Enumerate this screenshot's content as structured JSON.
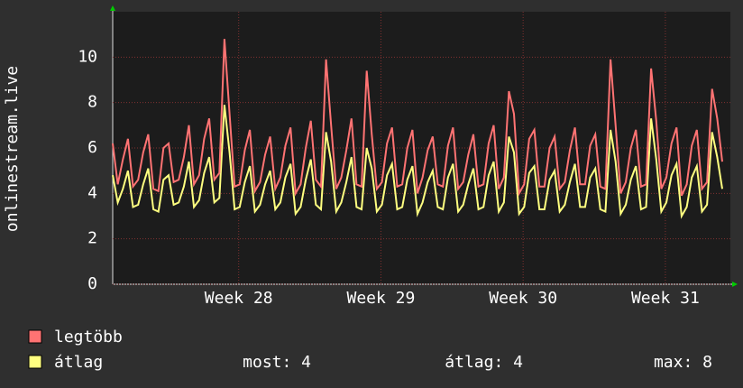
{
  "chart_data": {
    "type": "line",
    "y_label": "onlinestream.live",
    "xlim": [
      0,
      30.4
    ],
    "xticks": [
      {
        "value": 6.2,
        "label": "Week 28"
      },
      {
        "value": 13.2,
        "label": "Week 29"
      },
      {
        "value": 20.2,
        "label": "Week 30"
      },
      {
        "value": 27.2,
        "label": "Week 31"
      }
    ],
    "ylim": [
      0,
      12
    ],
    "yticks": [
      0,
      2,
      4,
      6,
      8,
      10
    ],
    "grid": true,
    "x": [
      0,
      0.25,
      0.5,
      0.75,
      1,
      1.25,
      1.5,
      1.75,
      2,
      2.25,
      2.5,
      2.75,
      3,
      3.25,
      3.5,
      3.75,
      4,
      4.25,
      4.5,
      4.75,
      5,
      5.25,
      5.5,
      5.75,
      6,
      6.25,
      6.5,
      6.75,
      7,
      7.25,
      7.5,
      7.75,
      8,
      8.25,
      8.5,
      8.75,
      9,
      9.25,
      9.5,
      9.75,
      10,
      10.25,
      10.5,
      10.75,
      11,
      11.25,
      11.5,
      11.75,
      12,
      12.25,
      12.5,
      12.75,
      13,
      13.25,
      13.5,
      13.75,
      14,
      14.25,
      14.5,
      14.75,
      15,
      15.25,
      15.5,
      15.75,
      16,
      16.25,
      16.5,
      16.75,
      17,
      17.25,
      17.5,
      17.75,
      18,
      18.25,
      18.5,
      18.75,
      19,
      19.25,
      19.5,
      19.75,
      20,
      20.25,
      20.5,
      20.75,
      21,
      21.25,
      21.5,
      21.75,
      22,
      22.25,
      22.5,
      22.75,
      23,
      23.25,
      23.5,
      23.75,
      24,
      24.25,
      24.5,
      24.75,
      25,
      25.25,
      25.5,
      25.75,
      26,
      26.25,
      26.5,
      26.75,
      27,
      27.25,
      27.5,
      27.75,
      28,
      28.25,
      28.5,
      28.75,
      29,
      29.25,
      29.5,
      29.75,
      30
    ],
    "series": [
      {
        "name": "legtöbb",
        "color": "#ff7373",
        "values": [
          6.2,
          4.4,
          5.5,
          6.4,
          4.3,
          4.6,
          5.8,
          6.6,
          4.2,
          4.1,
          6.0,
          6.2,
          4.5,
          4.6,
          5.6,
          7.0,
          4.4,
          4.8,
          6.4,
          7.3,
          4.6,
          4.9,
          10.8,
          7.5,
          4.3,
          4.4,
          5.9,
          6.8,
          4.1,
          4.5,
          5.7,
          6.5,
          4.2,
          4.7,
          6.1,
          6.9,
          4.0,
          4.4,
          6.0,
          7.2,
          4.6,
          4.3,
          9.9,
          7.0,
          4.2,
          4.7,
          5.9,
          7.3,
          4.4,
          4.3,
          9.4,
          6.6,
          4.2,
          4.5,
          6.2,
          6.9,
          4.3,
          4.4,
          6.0,
          6.8,
          4.0,
          4.7,
          5.9,
          6.5,
          4.4,
          4.3,
          6.1,
          6.9,
          4.2,
          4.5,
          5.7,
          6.6,
          4.3,
          4.4,
          6.2,
          7.0,
          4.2,
          4.7,
          8.5,
          7.5,
          4.0,
          4.4,
          6.4,
          6.8,
          4.3,
          4.3,
          6.0,
          6.5,
          4.2,
          4.5,
          5.9,
          6.9,
          4.4,
          4.4,
          6.1,
          6.6,
          4.3,
          4.2,
          9.9,
          7.0,
          4.0,
          4.5,
          6.0,
          6.8,
          4.3,
          4.4,
          9.5,
          7.2,
          4.2,
          4.7,
          6.2,
          6.9,
          3.9,
          4.4,
          6.1,
          6.8,
          4.2,
          4.5,
          8.6,
          7.3,
          5.4
        ]
      },
      {
        "name": "átlag",
        "color": "#ffff80",
        "values": [
          4.8,
          3.6,
          4.2,
          5.0,
          3.4,
          3.5,
          4.4,
          5.1,
          3.3,
          3.2,
          4.6,
          4.8,
          3.5,
          3.6,
          4.3,
          5.4,
          3.4,
          3.7,
          4.9,
          5.6,
          3.6,
          3.8,
          7.9,
          5.8,
          3.3,
          3.4,
          4.5,
          5.2,
          3.2,
          3.5,
          4.4,
          5.0,
          3.3,
          3.6,
          4.7,
          5.3,
          3.1,
          3.4,
          4.6,
          5.5,
          3.5,
          3.3,
          6.7,
          5.4,
          3.2,
          3.6,
          4.5,
          5.6,
          3.4,
          3.3,
          6.0,
          5.1,
          3.2,
          3.5,
          4.8,
          5.3,
          3.3,
          3.4,
          4.6,
          5.2,
          3.1,
          3.6,
          4.5,
          5.0,
          3.4,
          3.3,
          4.7,
          5.3,
          3.2,
          3.5,
          4.4,
          5.1,
          3.3,
          3.4,
          4.8,
          5.4,
          3.2,
          3.6,
          6.5,
          5.8,
          3.1,
          3.4,
          4.9,
          5.2,
          3.3,
          3.3,
          4.6,
          5.0,
          3.2,
          3.5,
          4.5,
          5.3,
          3.4,
          3.4,
          4.7,
          5.1,
          3.3,
          3.2,
          6.8,
          5.4,
          3.1,
          3.5,
          4.6,
          5.2,
          3.3,
          3.4,
          7.3,
          5.5,
          3.2,
          3.6,
          4.8,
          5.3,
          3.0,
          3.4,
          4.7,
          5.2,
          3.2,
          3.5,
          6.7,
          5.6,
          4.2
        ]
      }
    ],
    "legend_stats": [
      "most: 4",
      "átlag: 4",
      "max: 8"
    ]
  }
}
